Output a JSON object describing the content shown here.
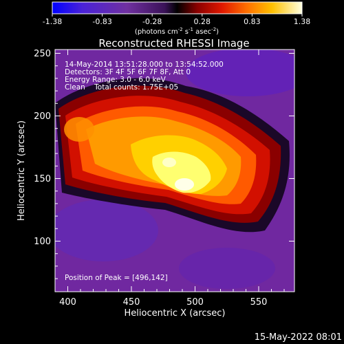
{
  "colorbar": {
    "ticks": [
      "-1.38",
      "-0.83",
      "-0.28",
      "0.28",
      "0.83",
      "1.38"
    ],
    "units_main": "(photons cm",
    "units_sup1": "-2",
    "units_mid1": " s",
    "units_sup2": "-1",
    "units_mid2": " asec",
    "units_sup3": "-2",
    "units_end": ")"
  },
  "plot": {
    "title": "Reconstructed RHESSI Image",
    "xlabel": "Heliocentric X (arcsec)",
    "ylabel": "Heliocentric Y (arcsec)",
    "x_ticks": [
      "400",
      "450",
      "500",
      "550"
    ],
    "y_ticks": [
      "100",
      "150",
      "200",
      "250"
    ],
    "xlim": [
      390,
      578
    ],
    "ylim": [
      60,
      253
    ]
  },
  "annotations": {
    "time_range": "14-May-2014 13:51:28.000 to 13:54:52.000",
    "detectors": "Detectors: 3F 4F 5F 6F 7F 8F, Att 0",
    "energy": "Energy Range: 3.0 - 6.0 keV",
    "clean": "Clean    Total counts: 1.75E+05",
    "peak": "Position of Peak = [496,142]"
  },
  "footer": {
    "date": "15-May-2022 08:01"
  },
  "colors": {
    "cmap": [
      "#0000ff",
      "#5a1ec8",
      "#7030a0",
      "#3a1258",
      "#000000",
      "#8a0000",
      "#e01800",
      "#ff7000",
      "#ffc000",
      "#ffff80",
      "#ffffe8"
    ]
  }
}
